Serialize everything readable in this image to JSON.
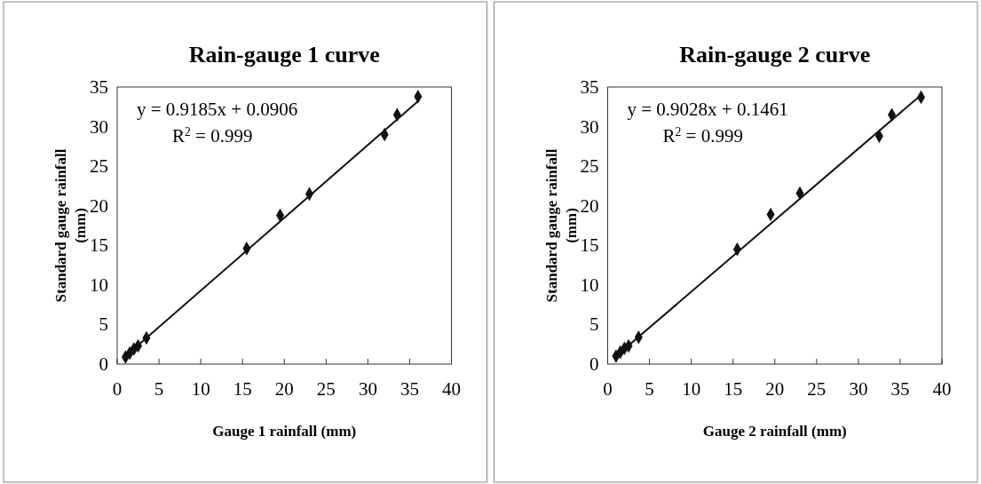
{
  "chart_data": [
    {
      "type": "scatter",
      "title": "Rain-gauge 1 curve",
      "xlabel": "Gauge 1 rainfall (mm)",
      "ylabel": "Standard gauge rainfall (mm)",
      "xlim": [
        0,
        40
      ],
      "ylim": [
        0,
        35
      ],
      "xticks": [
        0,
        5,
        10,
        15,
        20,
        25,
        30,
        35,
        40
      ],
      "yticks": [
        0,
        5,
        10,
        15,
        20,
        25,
        30,
        35
      ],
      "grid": false,
      "annotations": [
        "y = 0.9185x + 0.0906",
        "R$^{2}$ = 0.999"
      ],
      "series": [
        {
          "marker": "diamond",
          "color": "#111111",
          "x": [
            1,
            1.5,
            2,
            2.5,
            3.5,
            15.5,
            19.5,
            23,
            32,
            33.5,
            36
          ],
          "values": [
            0.9,
            1.4,
            1.9,
            2.3,
            3.3,
            14.6,
            18.8,
            21.5,
            29,
            31.5,
            33.8
          ]
        },
        {
          "type": "line",
          "marker": "none",
          "color": "#111111",
          "x": [
            1,
            36
          ],
          "values": [
            1.0,
            33.2
          ]
        }
      ]
    },
    {
      "type": "scatter",
      "title": "Rain-gauge 2 curve",
      "xlabel": "Gauge 2 rainfall (mm)",
      "ylabel": "Standard gauge rainfall (mm)",
      "xlim": [
        0,
        40
      ],
      "ylim": [
        0,
        35
      ],
      "xticks": [
        0,
        5,
        10,
        15,
        20,
        25,
        30,
        35,
        40
      ],
      "yticks": [
        0,
        5,
        10,
        15,
        20,
        25,
        30,
        35
      ],
      "grid": false,
      "annotations": [
        "y = 0.9028x + 0.1461",
        "R$^{2}$ = 0.999"
      ],
      "series": [
        {
          "marker": "diamond",
          "color": "#111111",
          "x": [
            1,
            1.5,
            2,
            2.5,
            3.7,
            15.5,
            19.5,
            23,
            32.5,
            34,
            37.5
          ],
          "values": [
            1,
            1.5,
            2,
            2.3,
            3.4,
            14.5,
            18.9,
            21.6,
            28.8,
            31.5,
            33.7
          ]
        },
        {
          "type": "line",
          "marker": "none",
          "color": "#111111",
          "x": [
            1,
            37.5
          ],
          "values": [
            1.0,
            34.0
          ]
        }
      ]
    }
  ]
}
